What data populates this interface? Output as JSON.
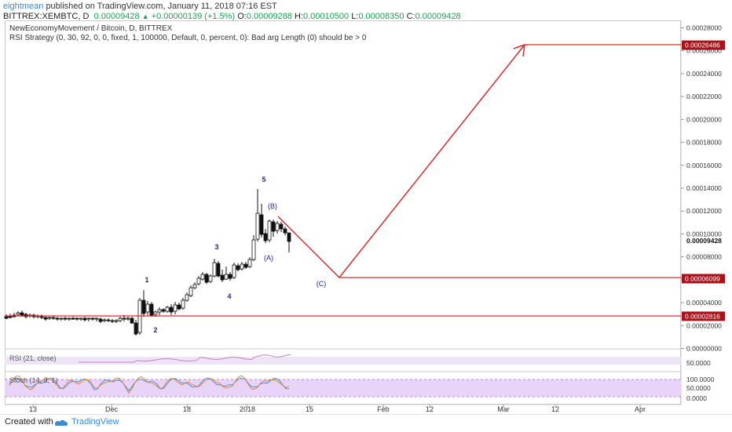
{
  "header": {
    "user": "eightmean",
    "published": "published on TradingView.com, January 11, 2018 07:16 EST",
    "symbol": "BITTREX:XEMBTC, D",
    "last": "0.00009428",
    "up_arrow": "▲",
    "change": "+0.00000139 (+1.5%)",
    "o_label": "O:",
    "o_value": "0.00009288",
    "h_label": "H:",
    "h_value": "0.00010500",
    "l_label": "L:",
    "l_value": "0.00008350",
    "c_label": "C:",
    "c_value": "0.00009428"
  },
  "legend": {
    "title": "NewEconomyMovement / Bitcoin, D, BITTREX",
    "strategy": "RSI Strategy (0, 30, 92, 0, 0, fixed, 1, 100000, Default, 0, percent, 0): Bad arg Length (0) should be > 0"
  },
  "price_axis": {
    "ticks": [
      "0.00028000",
      "0.00026000",
      "0.00024000",
      "0.00022000",
      "0.00020000",
      "0.00018000",
      "0.00016000",
      "0.00014000",
      "0.00012000",
      "0.00010000",
      "0.00008000",
      "0.00006000",
      "0.00004000",
      "0.00002000",
      "0.00000000"
    ],
    "last_price": "0.00009428",
    "badges": [
      "0.00026486",
      "0.00006099",
      "0.00002816"
    ]
  },
  "time_axis": {
    "labels": [
      "13",
      "Dec",
      "18",
      "2018",
      "15",
      "Feb",
      "12",
      "Mar",
      "12",
      "Apr"
    ]
  },
  "waves": [
    "1",
    "2",
    "3",
    "4",
    "5",
    "(A)",
    "(B)",
    "(C)"
  ],
  "indicators": {
    "rsi_label": "RSI (21, close)",
    "rsi_value": "50.0000",
    "stoch_label": "Stoch (14, 3, 1)",
    "stoch_ticks": [
      "100.0000",
      "50.0000",
      "0.0000"
    ]
  },
  "colors": {
    "projection": "#d92b2b",
    "badge": "#a8131b",
    "wave_label": "#1f2a8c",
    "rsi_band": "#ede5f7",
    "stoch_band": "#e8d4f8",
    "link": "#3a8ad6"
  },
  "footer": {
    "created": "Created with",
    "brand": "TradingView"
  }
}
